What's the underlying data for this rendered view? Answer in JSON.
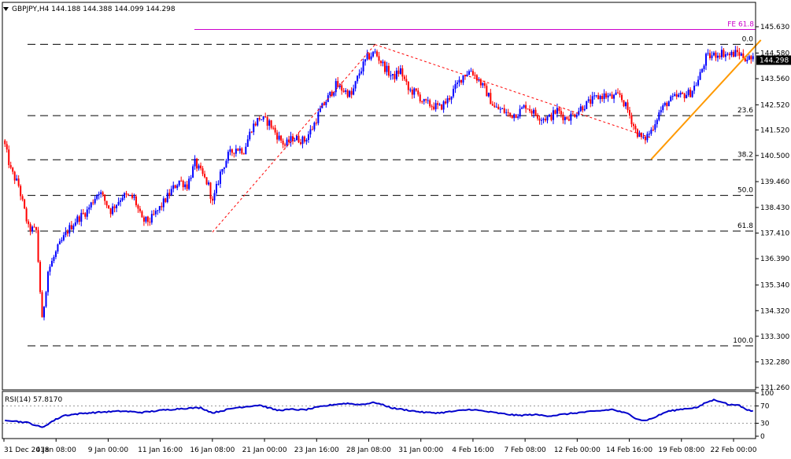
{
  "window": {
    "symbol_header": "GBPJPY,H4  144.188 144.388 144.099 144.298",
    "menu_icon": "down-triangle-icon"
  },
  "colors": {
    "bull": "#0000ff",
    "bear": "#ff0000",
    "fib_line": "#000000",
    "fe_line": "#cc00cc",
    "trend_line": "#ff9900",
    "channel_dashed": "#ff0000",
    "rsi_line": "#0000cc",
    "price_tag_bg": "#000000"
  },
  "chart_data": [
    {
      "type": "candlestick",
      "title": "GBPJPY,H4",
      "ohlc_header": "144.188 144.388 144.099 144.298",
      "ylim": [
        131.26,
        145.63
      ],
      "y_ticks": [
        "145.630",
        "144.580",
        "143.560",
        "142.520",
        "141.520",
        "140.500",
        "139.460",
        "138.430",
        "137.410",
        "136.390",
        "135.340",
        "134.320",
        "133.300",
        "132.280",
        "131.260"
      ],
      "current_price": "144.298",
      "x_tick_labels": [
        "31 Dec 2018",
        "4 Jan 08:00",
        "9 Jan 00:00",
        "11 Jan 16:00",
        "16 Jan 08:00",
        "21 Jan 00:00",
        "23 Jan 16:00",
        "28 Jan 08:00",
        "31 Jan 00:00",
        "4 Feb 16:00",
        "7 Feb 08:00",
        "12 Feb 00:00",
        "14 Feb 16:00",
        "19 Feb 08:00",
        "22 Feb 00:00"
      ],
      "fib_levels": [
        {
          "label": "0.0",
          "price": 144.93
        },
        {
          "label": "23.6",
          "price": 142.09
        },
        {
          "label": "38.2",
          "price": 140.33
        },
        {
          "label": "50.0",
          "price": 138.91
        },
        {
          "label": "61.8",
          "price": 137.49
        },
        {
          "label": "100.0",
          "price": 132.92
        }
      ],
      "fe_level": {
        "label": "FE 61.8",
        "price": 145.52
      },
      "close_path_anchors": [
        [
          0,
          140.9
        ],
        [
          3,
          139.9
        ],
        [
          7,
          139.3
        ],
        [
          12,
          137.6
        ],
        [
          16,
          137.5
        ],
        [
          19,
          133.9
        ],
        [
          22,
          135.9
        ],
        [
          27,
          136.8
        ],
        [
          32,
          137.5
        ],
        [
          36,
          137.9
        ],
        [
          42,
          138.3
        ],
        [
          48,
          139.1
        ],
        [
          54,
          138.3
        ],
        [
          60,
          138.9
        ],
        [
          66,
          138.8
        ],
        [
          70,
          137.9
        ],
        [
          74,
          137.9
        ],
        [
          79,
          138.4
        ],
        [
          85,
          139.1
        ],
        [
          89,
          139.5
        ],
        [
          93,
          139.3
        ],
        [
          97,
          140.2
        ],
        [
          101,
          139.7
        ],
        [
          104,
          139.3
        ],
        [
          106,
          138.6
        ],
        [
          110,
          139.8
        ],
        [
          114,
          140.5
        ],
        [
          118,
          140.8
        ],
        [
          122,
          140.7
        ],
        [
          126,
          141.6
        ],
        [
          130,
          142.0
        ],
        [
          135,
          141.8
        ],
        [
          139,
          141.3
        ],
        [
          143,
          140.9
        ],
        [
          147,
          141.2
        ],
        [
          153,
          141.1
        ],
        [
          157,
          141.6
        ],
        [
          161,
          142.3
        ],
        [
          165,
          142.8
        ],
        [
          169,
          143.3
        ],
        [
          173,
          143.1
        ],
        [
          177,
          142.9
        ],
        [
          181,
          143.8
        ],
        [
          185,
          144.4
        ],
        [
          189,
          144.6
        ],
        [
          194,
          144.0
        ],
        [
          198,
          143.6
        ],
        [
          202,
          143.9
        ],
        [
          206,
          143.1
        ],
        [
          210,
          143.0
        ],
        [
          214,
          142.6
        ],
        [
          218,
          142.5
        ],
        [
          222,
          142.4
        ],
        [
          226,
          142.7
        ],
        [
          230,
          143.2
        ],
        [
          234,
          143.7
        ],
        [
          238,
          143.9
        ],
        [
          242,
          143.5
        ],
        [
          246,
          143.0
        ],
        [
          250,
          142.4
        ],
        [
          254,
          142.3
        ],
        [
          258,
          142.1
        ],
        [
          262,
          142.2
        ],
        [
          266,
          142.5
        ],
        [
          270,
          142.2
        ],
        [
          274,
          142.0
        ],
        [
          278,
          142.0
        ],
        [
          282,
          142.3
        ],
        [
          286,
          142.0
        ],
        [
          290,
          142.1
        ],
        [
          294,
          142.4
        ],
        [
          298,
          142.6
        ],
        [
          302,
          142.8
        ],
        [
          306,
          142.9
        ],
        [
          310,
          142.8
        ],
        [
          314,
          142.9
        ],
        [
          318,
          142.3
        ],
        [
          322,
          141.5
        ],
        [
          326,
          141.1
        ],
        [
          330,
          141.5
        ],
        [
          334,
          142.2
        ],
        [
          338,
          142.6
        ],
        [
          342,
          142.8
        ],
        [
          346,
          142.9
        ],
        [
          350,
          143.0
        ],
        [
          354,
          143.5
        ],
        [
          358,
          144.4
        ],
        [
          362,
          144.5
        ],
        [
          366,
          144.6
        ],
        [
          370,
          144.5
        ],
        [
          374,
          144.6
        ],
        [
          378,
          144.4
        ],
        [
          382,
          144.3
        ]
      ],
      "candle_count": 383,
      "trendline": {
        "from": {
          "candle": 330,
          "price": 140.35
        },
        "to": {
          "candle": 386,
          "price": 145.1
        }
      },
      "dashed_lines": [
        {
          "from": {
            "candle": 106,
            "price": 137.45
          },
          "to": {
            "candle": 189,
            "price": 144.92
          }
        },
        {
          "from": {
            "candle": 189,
            "price": 144.92
          },
          "to": {
            "candle": 330,
            "price": 141.2
          }
        }
      ]
    },
    {
      "type": "line",
      "title": "RSI(14) 57.8170",
      "series": [
        {
          "name": "RSI(14)",
          "anchor_values": [
            [
              0,
              38
            ],
            [
              12,
              31
            ],
            [
              19,
              20
            ],
            [
              24,
              34
            ],
            [
              30,
              48
            ],
            [
              40,
              53
            ],
            [
              50,
              56
            ],
            [
              60,
              58
            ],
            [
              70,
              55
            ],
            [
              80,
              60
            ],
            [
              90,
              64
            ],
            [
              100,
              66
            ],
            [
              106,
              54
            ],
            [
              112,
              60
            ],
            [
              118,
              66
            ],
            [
              126,
              70
            ],
            [
              130,
              72
            ],
            [
              139,
              60
            ],
            [
              147,
              62
            ],
            [
              153,
              61
            ],
            [
              161,
              68
            ],
            [
              169,
              74
            ],
            [
              175,
              76
            ],
            [
              181,
              73
            ],
            [
              189,
              78
            ],
            [
              198,
              65
            ],
            [
              206,
              60
            ],
            [
              214,
              55
            ],
            [
              222,
              54
            ],
            [
              230,
              58
            ],
            [
              238,
              62
            ],
            [
              246,
              57
            ],
            [
              254,
              52
            ],
            [
              262,
              48
            ],
            [
              270,
              50
            ],
            [
              278,
              47
            ],
            [
              286,
              51
            ],
            [
              294,
              55
            ],
            [
              302,
              58
            ],
            [
              310,
              62
            ],
            [
              318,
              52
            ],
            [
              322,
              42
            ],
            [
              326,
              36
            ],
            [
              330,
              40
            ],
            [
              338,
              57
            ],
            [
              346,
              63
            ],
            [
              354,
              67
            ],
            [
              358,
              78
            ],
            [
              362,
              84
            ],
            [
              366,
              80
            ],
            [
              370,
              72
            ],
            [
              374,
              74
            ],
            [
              378,
              62
            ],
            [
              382,
              58
            ]
          ]
        }
      ],
      "ylim": [
        0,
        100
      ],
      "y_ticks": [
        "100",
        "70",
        "30",
        "0"
      ],
      "levels": [
        70,
        30
      ]
    }
  ]
}
